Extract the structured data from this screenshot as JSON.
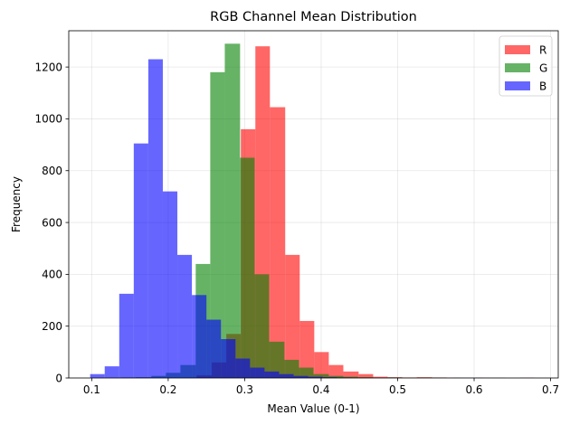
{
  "chart_data": {
    "type": "histogram",
    "title": "RGB Channel Mean Distribution",
    "xlabel": "Mean Value (0-1)",
    "ylabel": "Frequency",
    "xlim": [
      0.07,
      0.71
    ],
    "ylim": [
      0,
      1340
    ],
    "xticks": [
      0.1,
      0.2,
      0.3,
      0.4,
      0.5,
      0.6,
      0.7
    ],
    "xtick_labels": [
      "0.1",
      "0.2",
      "0.3",
      "0.4",
      "0.5",
      "0.6",
      "0.7"
    ],
    "yticks": [
      0,
      200,
      400,
      600,
      800,
      1000,
      1200
    ],
    "ytick_labels": [
      "0",
      "200",
      "400",
      "600",
      "800",
      "1000",
      "1200"
    ],
    "grid": true,
    "alpha": 0.6,
    "legend_position": "top-right",
    "series": [
      {
        "name": "R",
        "color": "#ff0000",
        "bins": [
          [
            0.237,
            0.257,
            10
          ],
          [
            0.257,
            0.276,
            60
          ],
          [
            0.276,
            0.295,
            170
          ],
          [
            0.295,
            0.314,
            960
          ],
          [
            0.314,
            0.333,
            1280
          ],
          [
            0.333,
            0.353,
            1045
          ],
          [
            0.353,
            0.372,
            475
          ],
          [
            0.372,
            0.391,
            220
          ],
          [
            0.391,
            0.41,
            100
          ],
          [
            0.41,
            0.429,
            50
          ],
          [
            0.429,
            0.449,
            25
          ],
          [
            0.449,
            0.468,
            15
          ],
          [
            0.468,
            0.487,
            5
          ],
          [
            0.487,
            0.506,
            3
          ],
          [
            0.506,
            0.525,
            2
          ],
          [
            0.525,
            0.545,
            3
          ],
          [
            0.545,
            0.564,
            2
          ],
          [
            0.564,
            0.583,
            1
          ],
          [
            0.583,
            0.602,
            0
          ],
          [
            0.602,
            0.621,
            1
          ],
          [
            0.621,
            0.641,
            0
          ],
          [
            0.641,
            0.66,
            0
          ],
          [
            0.66,
            0.679,
            1
          ]
        ]
      },
      {
        "name": "G",
        "color": "#008000",
        "bins": [
          [
            0.139,
            0.158,
            2
          ],
          [
            0.158,
            0.178,
            3
          ],
          [
            0.178,
            0.197,
            8
          ],
          [
            0.197,
            0.216,
            20
          ],
          [
            0.216,
            0.236,
            50
          ],
          [
            0.236,
            0.255,
            440
          ],
          [
            0.255,
            0.274,
            1180
          ],
          [
            0.274,
            0.294,
            1290
          ],
          [
            0.294,
            0.313,
            850
          ],
          [
            0.313,
            0.332,
            400
          ],
          [
            0.332,
            0.352,
            140
          ],
          [
            0.352,
            0.371,
            70
          ],
          [
            0.371,
            0.39,
            40
          ],
          [
            0.39,
            0.41,
            15
          ],
          [
            0.41,
            0.429,
            8
          ],
          [
            0.429,
            0.448,
            5
          ],
          [
            0.448,
            0.468,
            3
          ],
          [
            0.468,
            0.487,
            1
          ],
          [
            0.487,
            0.506,
            2
          ],
          [
            0.506,
            0.526,
            0
          ],
          [
            0.526,
            0.545,
            1
          ],
          [
            0.545,
            0.564,
            1
          ],
          [
            0.564,
            0.583,
            0
          ],
          [
            0.583,
            0.603,
            0
          ],
          [
            0.603,
            0.622,
            0
          ],
          [
            0.622,
            0.641,
            1
          ]
        ]
      },
      {
        "name": "B",
        "color": "#0000ff",
        "bins": [
          [
            0.098,
            0.117,
            15
          ],
          [
            0.117,
            0.136,
            45
          ],
          [
            0.136,
            0.155,
            325
          ],
          [
            0.155,
            0.174,
            905
          ],
          [
            0.174,
            0.193,
            1230
          ],
          [
            0.193,
            0.212,
            720
          ],
          [
            0.212,
            0.231,
            475
          ],
          [
            0.231,
            0.25,
            320
          ],
          [
            0.25,
            0.269,
            225
          ],
          [
            0.269,
            0.288,
            150
          ],
          [
            0.288,
            0.307,
            75
          ],
          [
            0.307,
            0.326,
            40
          ],
          [
            0.326,
            0.345,
            25
          ],
          [
            0.345,
            0.364,
            15
          ],
          [
            0.364,
            0.383,
            8
          ],
          [
            0.383,
            0.402,
            5
          ],
          [
            0.402,
            0.421,
            3
          ],
          [
            0.421,
            0.44,
            2
          ],
          [
            0.44,
            0.459,
            1
          ],
          [
            0.459,
            0.478,
            1
          ],
          [
            0.478,
            0.497,
            1
          ],
          [
            0.497,
            0.516,
            0
          ],
          [
            0.516,
            0.535,
            0
          ],
          [
            0.535,
            0.554,
            0
          ],
          [
            0.554,
            0.573,
            0
          ],
          [
            0.573,
            0.592,
            1
          ],
          [
            0.592,
            0.611,
            1
          ]
        ]
      }
    ]
  }
}
